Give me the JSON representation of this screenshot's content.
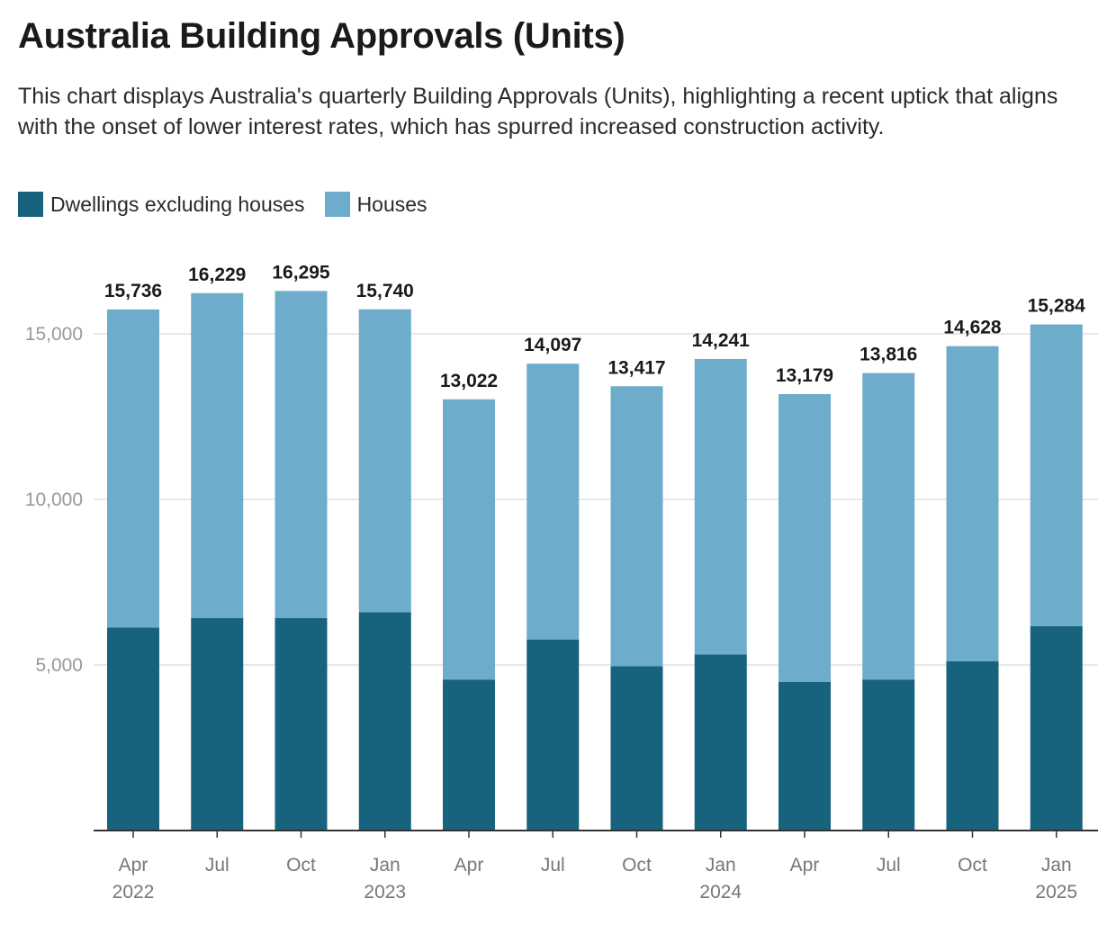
{
  "title": "Australia Building Approvals (Units)",
  "subtitle": "This chart displays Australia's quarterly Building Approvals (Units), highlighting a recent uptick that aligns with the onset of lower interest rates, which has spurred increased construction activity.",
  "colors": {
    "dwellings": "#17627d",
    "houses": "#6dacca",
    "grid": "#e2e2e2",
    "axis": "#333333"
  },
  "chart_data": {
    "type": "bar",
    "stacked": true,
    "categories": [
      "Apr 2022",
      "Jul 2022",
      "Oct 2022",
      "Jan 2023",
      "Apr 2023",
      "Jul 2023",
      "Oct 2023",
      "Jan 2024",
      "Apr 2024",
      "Jul 2024",
      "Oct 2024",
      "Jan 2025"
    ],
    "tick_labels": [
      [
        "Apr",
        "2022"
      ],
      [
        "Jul",
        ""
      ],
      [
        "Oct",
        ""
      ],
      [
        "Jan",
        "2023"
      ],
      [
        "Apr",
        ""
      ],
      [
        "Jul",
        ""
      ],
      [
        "Oct",
        ""
      ],
      [
        "Jan",
        "2024"
      ],
      [
        "Apr",
        ""
      ],
      [
        "Jul",
        ""
      ],
      [
        "Oct",
        ""
      ],
      [
        "Jan",
        "2025"
      ]
    ],
    "series": [
      {
        "name": "Dwellings excluding houses",
        "color": "#17627d",
        "values": [
          6130,
          6420,
          6420,
          6590,
          4560,
          5770,
          4960,
          5320,
          4490,
          4560,
          5110,
          6170
        ]
      },
      {
        "name": "Houses",
        "color": "#6dacca",
        "values": [
          9606,
          9809,
          9875,
          9150,
          8462,
          8327,
          8457,
          8921,
          8689,
          9256,
          9518,
          9114
        ]
      }
    ],
    "totals": [
      15736,
      16229,
      16295,
      15740,
      13022,
      14097,
      13417,
      14241,
      13179,
      13816,
      14628,
      15284
    ],
    "total_labels": [
      "15,736",
      "16,229",
      "16,295",
      "15,740",
      "13,022",
      "14,097",
      "13,417",
      "14,241",
      "13,179",
      "13,816",
      "14,628",
      "15,284"
    ],
    "y_ticks": [
      5000,
      10000,
      15000
    ],
    "y_tick_labels": [
      "5,000",
      "10,000",
      "15,000"
    ],
    "ylim": [
      0,
      17000
    ],
    "grid": true,
    "legend_position": "top-left"
  }
}
